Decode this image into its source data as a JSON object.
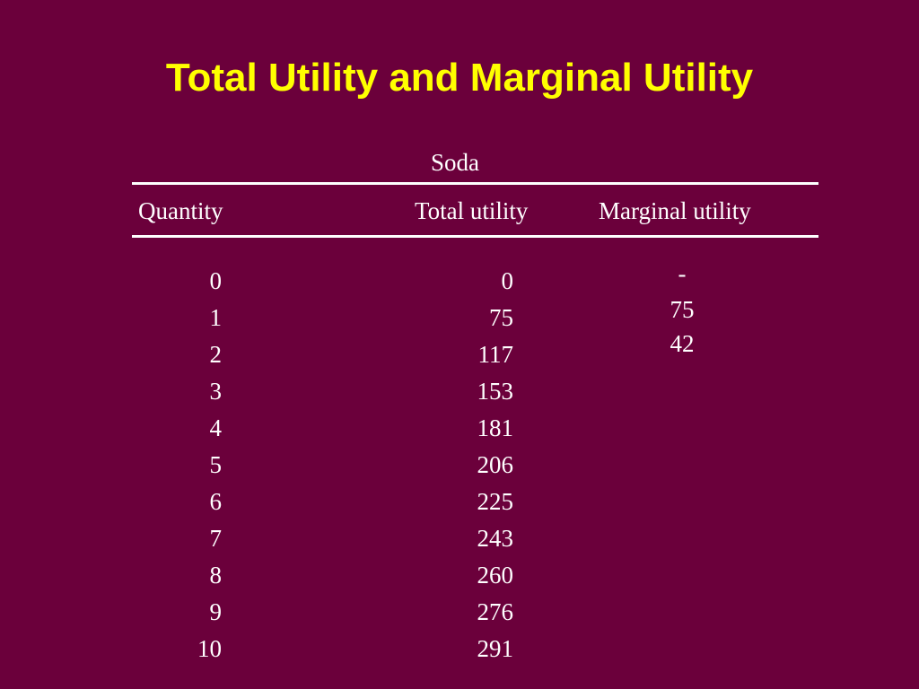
{
  "slide": {
    "title": "Total Utility and Marginal Utility"
  },
  "table": {
    "group_header": "Soda",
    "columns": {
      "quantity": "Quantity",
      "total_utility": "Total utility",
      "marginal_utility": "Marginal utility"
    },
    "quantity": [
      "0",
      "1",
      "2",
      "3",
      "4",
      "5",
      "6",
      "7",
      "8",
      "9",
      "10"
    ],
    "total_utility": [
      "0",
      "75",
      "117",
      "153",
      "181",
      "206",
      "225",
      "243",
      "260",
      "276",
      "291"
    ],
    "marginal_utility": [
      "-",
      "75",
      "42"
    ]
  },
  "colors": {
    "background": "#6b003b",
    "title": "#ffff00",
    "text": "#ffffff"
  }
}
